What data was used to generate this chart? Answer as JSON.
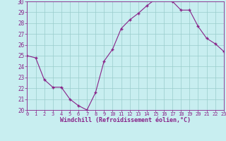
{
  "x": [
    0,
    1,
    2,
    3,
    4,
    5,
    6,
    7,
    8,
    9,
    10,
    11,
    12,
    13,
    14,
    15,
    16,
    17,
    18,
    19,
    20,
    21,
    22,
    23
  ],
  "y": [
    25.0,
    24.8,
    22.8,
    22.1,
    22.1,
    21.0,
    20.4,
    20.0,
    21.6,
    24.5,
    25.6,
    27.5,
    28.3,
    28.9,
    29.6,
    30.2,
    30.25,
    30.0,
    29.2,
    29.2,
    27.7,
    26.6,
    26.1,
    25.4
  ],
  "line_color": "#882288",
  "marker": "P",
  "bg_color": "#c8eef0",
  "grid_color": "#99cccc",
  "xlabel": "Windchill (Refroidissement éolien,°C)",
  "xlim": [
    0,
    23
  ],
  "ylim": [
    20,
    30
  ],
  "yticks": [
    20,
    21,
    22,
    23,
    24,
    25,
    26,
    27,
    28,
    29,
    30
  ],
  "xticks": [
    0,
    1,
    2,
    3,
    4,
    5,
    6,
    7,
    8,
    9,
    10,
    11,
    12,
    13,
    14,
    15,
    16,
    17,
    18,
    19,
    20,
    21,
    22,
    23
  ],
  "tick_color": "#882288",
  "label_color": "#882288"
}
